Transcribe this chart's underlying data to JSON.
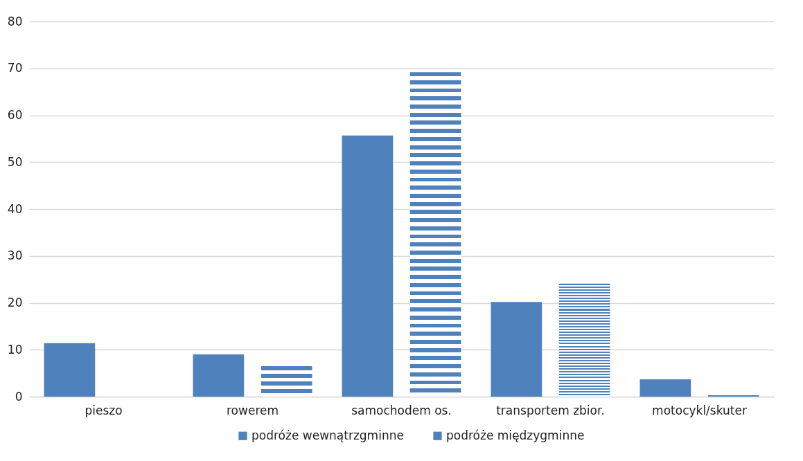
{
  "chart_data": {
    "type": "bar",
    "categories": [
      "pieszo",
      "rowerem",
      "samochodem os.",
      "transportem zbior.",
      "motocykl/skuter"
    ],
    "series": [
      {
        "name": "podróże wewnątrzgminne",
        "color": "#4f81bd",
        "values": [
          11.4,
          9.0,
          55.7,
          20.2,
          3.7
        ]
      },
      {
        "name": "podróże międzygminne",
        "color": "#4f81bd",
        "values": [
          0,
          6.5,
          69.2,
          24.1,
          0.3
        ]
      }
    ],
    "ylim": [
      0,
      80
    ],
    "yticks": [
      0,
      10,
      20,
      30,
      40,
      50,
      60,
      70,
      80
    ],
    "grid": "y",
    "legend": "bottom"
  }
}
